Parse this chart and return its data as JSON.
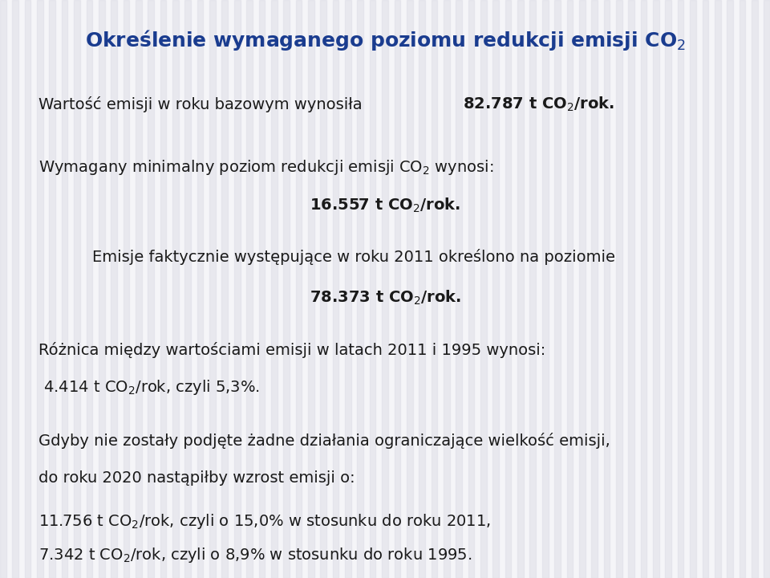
{
  "bg_color": "#f5f5f8",
  "stripe_color": "#e0e0e8",
  "title_color": "#1a3c8f",
  "text_color": "#1a1a1a",
  "title": "Określenie wymaganego poziomu redukcji emisji CO$_2$",
  "line1_normal": "Wartość emisji w roku bazowym wynosiła ",
  "line1_bold": "82.787 t CO$_2$/rok.",
  "line2a": "Wymagany minimalny poziom redukcji emisji CO$_2$ wynosi:",
  "line2b": "16.557 t CO$_2$/rok.",
  "line3a": "Emisje faktycznie występujące w roku 2011 określono na poziomie",
  "line3b": "78.373 t CO$_2$/rok.",
  "line4a": "Różnica między wartościami emisji w latach 2011 i 1995 wynosi:",
  "line4b": " 4.414 t CO$_2$/rok, czyli 5,3%.",
  "line5a": "Gdyby nie zostały podjęte żadne działania ograniczające wielkość emisji,",
  "line5b": "do roku 2020 nastąpiłby wzrost emisji o:",
  "line5c": "11.756 t CO$_2$/rok, czyli o 15,0% w stosunku do roku 2011,",
  "line5d": "7.342 t CO$_2$/rok, czyli o 8,9% w stosunku do roku 1995.",
  "fontsize": 14,
  "title_fontsize": 18
}
